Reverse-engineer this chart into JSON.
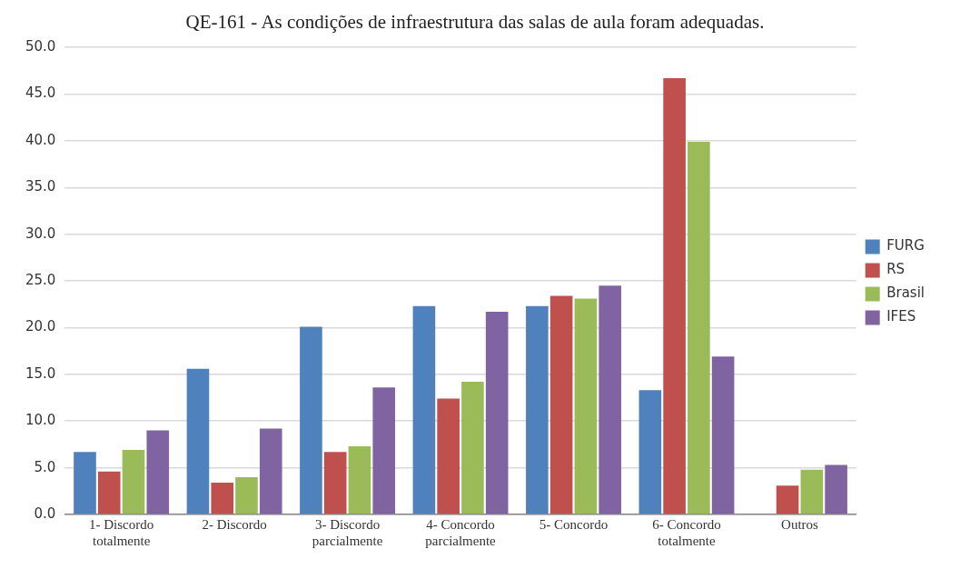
{
  "chart_data": {
    "type": "bar",
    "title": "QE-161 - As condições de infraestrutura das salas de aula foram adequadas.",
    "categories": [
      "1- Discordo totalmente",
      "2- Discordo",
      "3- Discordo parcialmente",
      "4- Concordo parcialmente",
      "5- Concordo",
      "6- Concordo totalmente",
      "Outros"
    ],
    "series": [
      {
        "name": "FURG",
        "color": "#4f81bd",
        "values": [
          6.7,
          15.6,
          20.1,
          22.3,
          22.3,
          13.3,
          null
        ]
      },
      {
        "name": "RS",
        "color": "#c0504d",
        "values": [
          4.6,
          3.4,
          6.7,
          12.4,
          23.4,
          46.7,
          3.1
        ]
      },
      {
        "name": "Brasil",
        "color": "#9bbb59",
        "values": [
          6.9,
          4.0,
          7.3,
          14.2,
          23.1,
          39.9,
          4.8
        ]
      },
      {
        "name": "IFES",
        "color": "#8064a2",
        "values": [
          9.0,
          9.2,
          13.6,
          21.7,
          24.5,
          16.9,
          5.3
        ]
      }
    ],
    "ylim": [
      0,
      50
    ],
    "yticks": [
      {
        "value": 0,
        "label": "0.0"
      },
      {
        "value": 5,
        "label": "5.0"
      },
      {
        "value": 10,
        "label": "10.0"
      },
      {
        "value": 15,
        "label": "15.0"
      },
      {
        "value": 20,
        "label": "20.0"
      },
      {
        "value": 25,
        "label": "25.0"
      },
      {
        "value": 30,
        "label": "30.0"
      },
      {
        "value": 35,
        "label": "35.0"
      },
      {
        "value": 40,
        "label": "40.0"
      },
      {
        "value": 45,
        "label": "45.0"
      },
      {
        "value": 50,
        "label": "50.0"
      }
    ],
    "grid": "y",
    "legend": "right"
  }
}
